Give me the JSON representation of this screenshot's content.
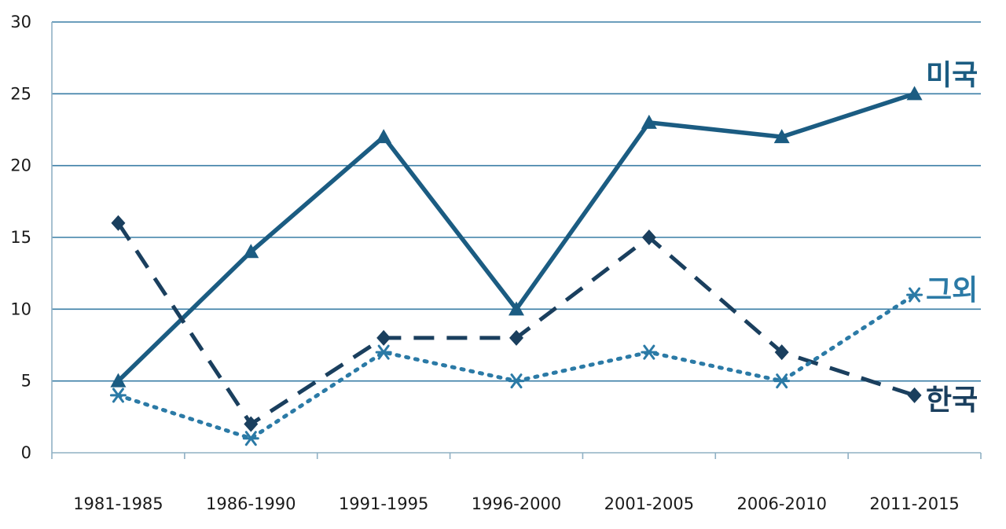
{
  "chart_data": {
    "type": "line",
    "categories": [
      "1981-1985",
      "1986-1990",
      "1991-1995",
      "1996-2000",
      "2001-2005",
      "2006-2010",
      "2011-2015"
    ],
    "ylim": [
      0,
      30
    ],
    "yticks": [
      0,
      5,
      10,
      15,
      20,
      25,
      30
    ],
    "grid": true,
    "series": [
      {
        "name": "미국",
        "values": [
          5,
          14,
          22,
          10,
          23,
          22,
          25
        ],
        "style": "solid",
        "marker": "triangle",
        "color": "#1b5c82"
      },
      {
        "name": "한국",
        "values": [
          16,
          2,
          8,
          8,
          15,
          7,
          4
        ],
        "style": "dashed",
        "marker": "diamond",
        "color": "#1a3f5e"
      },
      {
        "name": "그외",
        "values": [
          4,
          1,
          7,
          5,
          7,
          5,
          11
        ],
        "style": "dotted",
        "marker": "star",
        "color": "#2b7aa6"
      }
    ]
  }
}
